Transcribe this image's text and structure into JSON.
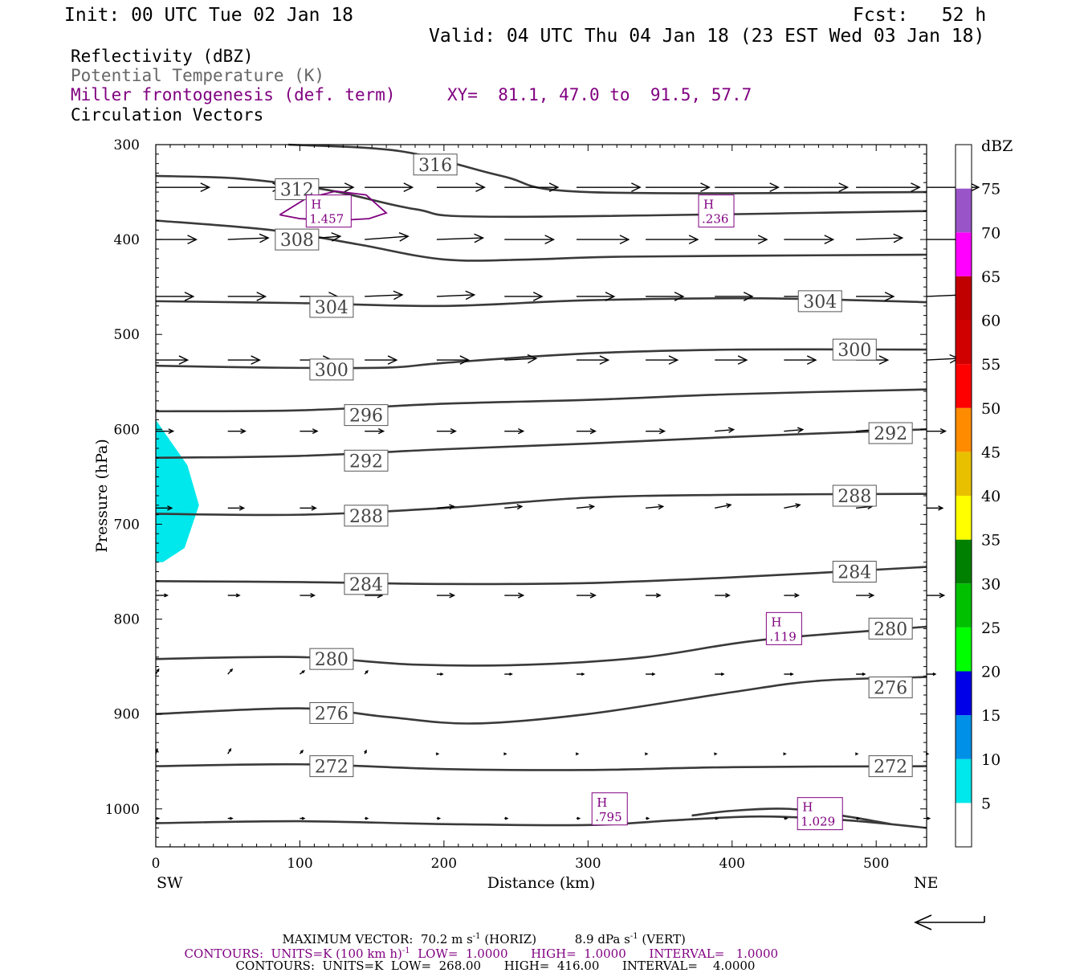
{
  "header": {
    "init": "Init: 00 UTC Tue 02 Jan 18",
    "fcst": "Fcst:   52 h",
    "valid": "Valid: 04 UTC Thu 04 Jan 18 (23 EST Wed 03 Jan 18)"
  },
  "legend": {
    "reflectivity": "Reflectivity (dBZ)",
    "theta": "Potential Temperature (K)",
    "miller": "Miller frontogenesis (def. term)",
    "xy": "XY=  81.1, 47.0 to  91.5, 57.7",
    "vectors": "Circulation Vectors"
  },
  "footer": {
    "max_label": "MAXIMUM VECTOR:",
    "max_horiz": "70.2 m s",
    "horiz_tag": "(HORIZ)",
    "max_vert": "8.9 dPa s",
    "vert_tag": "(VERT)",
    "frontog_contours": "CONTOURS:  UNITS=K (100 km h)",
    "frontog_rest": "LOW=  1.0000      HIGH=  1.0000      INTERVAL=   1.0000",
    "theta_contours": "CONTOURS:  UNITS=K  LOW=  268.00      HIGH=  416.00      INTERVAL=    4.0000"
  },
  "colorbar": {
    "title": "dBZ",
    "levels": [
      5,
      10,
      15,
      20,
      25,
      30,
      35,
      40,
      45,
      50,
      55,
      60,
      65,
      70,
      75
    ],
    "colors": [
      "#ffffff",
      "#00e8ec",
      "#0090e8",
      "#0000e8",
      "#00ff00",
      "#00c000",
      "#008000",
      "#ffff00",
      "#e8c000",
      "#ff8c00",
      "#ff0000",
      "#d00000",
      "#c00000",
      "#ff00ff",
      "#9955c8",
      "#ffffff"
    ]
  },
  "chart_data": {
    "type": "cross-section",
    "xlabel": "Distance (km)",
    "ylabel": "Pressure (hPa)",
    "xlim": [
      0,
      535
    ],
    "ylim": [
      1040,
      300
    ],
    "xticks": [
      0,
      100,
      200,
      300,
      400,
      500
    ],
    "yticks": [
      300,
      400,
      500,
      600,
      700,
      800,
      900,
      1000
    ],
    "left_end": "SW",
    "right_end": "NE",
    "theta_contours": [
      {
        "label": "316",
        "points": [
          [
            92,
            300
          ],
          [
            170,
            307
          ],
          [
            240,
            333
          ],
          [
            300,
            350
          ],
          [
            535,
            350
          ]
        ],
        "labels": [
          [
            194,
            321
          ]
        ]
      },
      {
        "label": "312",
        "points": [
          [
            0,
            333
          ],
          [
            60,
            336
          ],
          [
            120,
            348
          ],
          [
            180,
            368
          ],
          [
            240,
            376
          ],
          [
            535,
            370
          ]
        ],
        "labels": [
          [
            98,
            347
          ]
        ]
      },
      {
        "label": "308",
        "points": [
          [
            0,
            380
          ],
          [
            80,
            390
          ],
          [
            140,
            405
          ],
          [
            200,
            421
          ],
          [
            260,
            421
          ],
          [
            330,
            418
          ],
          [
            535,
            416
          ]
        ],
        "labels": [
          [
            98,
            400
          ]
        ]
      },
      {
        "label": "304",
        "points": [
          [
            0,
            465
          ],
          [
            100,
            467
          ],
          [
            200,
            470
          ],
          [
            300,
            464
          ],
          [
            420,
            462
          ],
          [
            535,
            466
          ]
        ],
        "labels": [
          [
            122,
            471
          ],
          [
            461,
            465
          ]
        ]
      },
      {
        "label": "300",
        "points": [
          [
            0,
            533
          ],
          [
            80,
            535
          ],
          [
            160,
            535
          ],
          [
            200,
            530
          ],
          [
            300,
            520
          ],
          [
            400,
            516
          ],
          [
            535,
            516
          ]
        ],
        "labels": [
          [
            122,
            537
          ],
          [
            485,
            516
          ]
        ]
      },
      {
        "label": "296",
        "points": [
          [
            0,
            581
          ],
          [
            100,
            580
          ],
          [
            200,
            573
          ],
          [
            300,
            569
          ],
          [
            400,
            563
          ],
          [
            535,
            558
          ]
        ],
        "labels": [
          [
            146,
            585
          ]
        ]
      },
      {
        "label": "292",
        "points": [
          [
            0,
            630
          ],
          [
            100,
            628
          ],
          [
            200,
            621
          ],
          [
            300,
            615
          ],
          [
            400,
            608
          ],
          [
            535,
            600
          ]
        ],
        "labels": [
          [
            146,
            633
          ],
          [
            510,
            604
          ]
        ]
      },
      {
        "label": "288",
        "points": [
          [
            0,
            689
          ],
          [
            100,
            690
          ],
          [
            200,
            683
          ],
          [
            300,
            672
          ],
          [
            400,
            669
          ],
          [
            535,
            668
          ]
        ],
        "labels": [
          [
            146,
            691
          ],
          [
            485,
            670
          ]
        ]
      },
      {
        "label": "284",
        "points": [
          [
            0,
            760
          ],
          [
            100,
            761
          ],
          [
            200,
            763
          ],
          [
            300,
            762
          ],
          [
            400,
            756
          ],
          [
            535,
            745
          ]
        ],
        "labels": [
          [
            146,
            763
          ],
          [
            485,
            750
          ]
        ]
      },
      {
        "label": "280",
        "points": [
          [
            0,
            842
          ],
          [
            100,
            840
          ],
          [
            180,
            848
          ],
          [
            260,
            848
          ],
          [
            340,
            840
          ],
          [
            420,
            822
          ],
          [
            535,
            808
          ]
        ],
        "labels": [
          [
            122,
            842
          ],
          [
            510,
            810
          ]
        ]
      },
      {
        "label": "276",
        "points": [
          [
            0,
            900
          ],
          [
            100,
            894
          ],
          [
            160,
            903
          ],
          [
            220,
            910
          ],
          [
            300,
            900
          ],
          [
            400,
            877
          ],
          [
            460,
            865
          ],
          [
            535,
            861
          ]
        ],
        "labels": [
          [
            122,
            899
          ],
          [
            510,
            872
          ]
        ]
      },
      {
        "label": "272",
        "points": [
          [
            0,
            955
          ],
          [
            100,
            953
          ],
          [
            200,
            958
          ],
          [
            300,
            959
          ],
          [
            400,
            956
          ],
          [
            535,
            955
          ]
        ],
        "labels": [
          [
            122,
            955
          ],
          [
            510,
            955
          ]
        ]
      },
      {
        "label": "",
        "points": [
          [
            0,
            1015
          ],
          [
            100,
            1013
          ],
          [
            200,
            1016
          ],
          [
            300,
            1017
          ],
          [
            360,
            1012
          ],
          [
            420,
            1008
          ],
          [
            480,
            1012
          ],
          [
            535,
            1020
          ]
        ],
        "labels": []
      },
      {
        "label": "",
        "points": [
          [
            372,
            1007
          ],
          [
            400,
            1002
          ],
          [
            440,
            1000
          ],
          [
            480,
            1008
          ],
          [
            510,
            1016
          ]
        ],
        "labels": []
      }
    ],
    "reflectivity_regions": [
      {
        "dbz": 5,
        "points": [
          [
            0,
            590
          ],
          [
            10,
            612
          ],
          [
            22,
            638
          ],
          [
            30,
            680
          ],
          [
            20,
            725
          ],
          [
            5,
            740
          ],
          [
            0,
            740
          ]
        ]
      }
    ],
    "frontogenesis_maxima": [
      {
        "label": "H",
        "value": "1.457",
        "x": 120,
        "p": 370
      },
      {
        "label": "H",
        "value": ".236",
        "x": 389,
        "p": 370
      },
      {
        "label": "H",
        "value": ".119",
        "x": 436,
        "p": 810
      },
      {
        "label": "H",
        "value": ".795",
        "x": 315,
        "p": 1000
      },
      {
        "label": "H",
        "value": "1.029",
        "x": 461,
        "p": 1005
      }
    ],
    "frontogenesis_contours": [
      {
        "value": 1.0,
        "points": [
          [
            86,
            374
          ],
          [
            104,
            357
          ],
          [
            125,
            349
          ],
          [
            146,
            353
          ],
          [
            160,
            372
          ],
          [
            148,
            378
          ],
          [
            125,
            380
          ],
          [
            100,
            378
          ],
          [
            86,
            374
          ]
        ]
      }
    ],
    "vector_rows": [
      {
        "p": 345,
        "x": [
          0,
          50,
          100,
          145,
          195,
          242,
          292,
          340,
          388,
          436,
          486,
          535
        ],
        "u": [
          37,
          37,
          37,
          33,
          33,
          37,
          44,
          44,
          44,
          44,
          44,
          36
        ],
        "w": [
          0,
          0,
          0,
          0,
          0,
          0,
          0,
          0,
          0,
          0,
          0,
          0
        ]
      },
      {
        "p": 400,
        "x": [
          0,
          50,
          100,
          145,
          195,
          242,
          292,
          340,
          388,
          436,
          486,
          535
        ],
        "u": [
          28,
          28,
          28,
          30,
          32,
          34,
          36,
          36,
          36,
          34,
          32,
          30
        ],
        "w": [
          0,
          -1,
          -2,
          -2,
          -1,
          0,
          0,
          0,
          0,
          0,
          -1,
          0
        ]
      },
      {
        "p": 460,
        "x": [
          0,
          50,
          100,
          145,
          195,
          242,
          292,
          340,
          388,
          436,
          486,
          535
        ],
        "u": [
          26,
          26,
          26,
          26,
          26,
          26,
          26,
          26,
          26,
          26,
          26,
          26
        ],
        "w": [
          0,
          0,
          0,
          -1,
          -1,
          0,
          0,
          0,
          0,
          0,
          0,
          -1
        ]
      },
      {
        "p": 527,
        "x": [
          0,
          50,
          100,
          145,
          195,
          242,
          292,
          340,
          388,
          436,
          486,
          535
        ],
        "u": [
          22,
          22,
          22,
          22,
          22,
          22,
          22,
          22,
          22,
          22,
          22,
          22
        ],
        "w": [
          0,
          0,
          0,
          0,
          0,
          -1,
          0,
          0,
          0,
          0,
          0,
          -1
        ]
      },
      {
        "p": 602,
        "x": [
          0,
          50,
          100,
          145,
          195,
          242,
          292,
          340,
          388,
          436,
          486,
          535
        ],
        "u": [
          12,
          12,
          12,
          13,
          13,
          13,
          13,
          13,
          13,
          13,
          13,
          13
        ],
        "w": [
          0,
          0,
          0,
          0,
          0,
          0,
          0,
          0,
          -1,
          -1,
          -1,
          0
        ]
      },
      {
        "p": 683,
        "x": [
          0,
          50,
          100,
          145,
          195,
          242,
          292,
          340,
          388,
          436,
          486,
          535
        ],
        "u": [
          11,
          11,
          11,
          12,
          12,
          12,
          12,
          12,
          11,
          11,
          11,
          11
        ],
        "w": [
          0,
          0,
          0,
          0,
          -1,
          -1,
          -1,
          -1,
          -2,
          -2,
          -1,
          0
        ]
      },
      {
        "p": 775,
        "x": [
          0,
          50,
          100,
          145,
          195,
          242,
          292,
          340,
          388,
          436,
          486,
          535
        ],
        "u": [
          8,
          8,
          10,
          12,
          12,
          13,
          13,
          10,
          10,
          10,
          12,
          12
        ],
        "w": [
          0,
          0,
          0,
          0,
          0,
          0,
          0,
          0,
          0,
          0,
          0,
          0
        ]
      },
      {
        "p": 858,
        "x": [
          0,
          50,
          100,
          145,
          195,
          242,
          292,
          340,
          388,
          436,
          486,
          535
        ],
        "u": [
          2,
          3,
          3,
          2,
          4,
          5,
          5,
          6,
          6,
          6,
          6,
          6
        ],
        "w": [
          -3,
          -3,
          -2,
          -2,
          0,
          0,
          0,
          0,
          0,
          0,
          0,
          0
        ]
      },
      {
        "p": 942,
        "x": [
          0,
          50,
          100,
          145,
          195,
          242,
          292,
          340,
          388,
          436,
          486,
          535
        ],
        "u": [
          1,
          2,
          2,
          1,
          1,
          1,
          1,
          1,
          1,
          1,
          1,
          1
        ],
        "w": [
          -3,
          -3,
          -2,
          -2,
          0,
          0,
          0,
          0,
          0,
          0,
          0,
          0
        ]
      },
      {
        "p": 1010,
        "x": [
          0,
          50,
          100,
          145,
          195,
          242,
          292,
          340,
          388,
          436,
          486,
          535
        ],
        "u": [
          2,
          3,
          3,
          2,
          2,
          2,
          2,
          2,
          2,
          2,
          2,
          2
        ],
        "w": [
          0,
          0,
          0,
          0,
          0,
          0,
          0,
          0,
          0,
          0,
          0,
          0
        ]
      }
    ]
  }
}
